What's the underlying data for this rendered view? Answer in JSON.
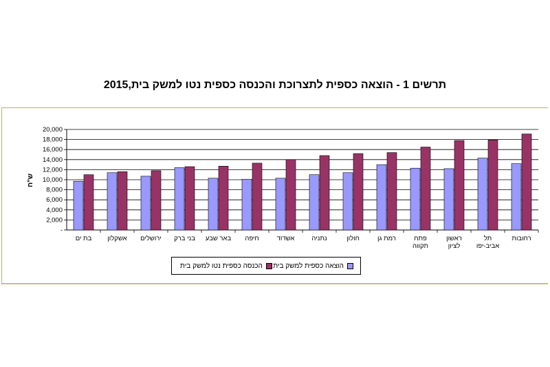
{
  "chart_data": {
    "type": "bar",
    "title": "תרשים 1 - הוצאה כספית לתצרוכת והכנסה כספית נטו למשק בית,2015",
    "ylabel": "ש\"ח",
    "xlabel": "",
    "ylim": [
      0,
      20000
    ],
    "yticks": [
      "-",
      "2,000",
      "4,000",
      "6,000",
      "8,000",
      "10,000",
      "12,000",
      "14,000",
      "16,000",
      "18,000",
      "20,000"
    ],
    "grid": true,
    "legend_position": "bottom",
    "categories": [
      "בת ים",
      "אשקלון",
      "ירושלים",
      "בני ברק",
      "באר שבע",
      "חיפה",
      "אשדוד",
      "נתניה",
      "חולון",
      "רמת גן",
      "פתח תקווה",
      "ראשון לציון",
      "תל אביב-יפו",
      "רחובות"
    ],
    "series": [
      {
        "name": "הוצאה כספית למשק בית",
        "color": "#9999ff",
        "values": [
          9700,
          11400,
          10700,
          12400,
          10300,
          10100,
          10300,
          11000,
          11400,
          13000,
          12300,
          12200,
          14300,
          13200
        ]
      },
      {
        "name": "הכנסה כספית נטו למשק בית",
        "color": "#993366",
        "values": [
          11000,
          11600,
          11800,
          12600,
          12700,
          13300,
          14000,
          14800,
          15200,
          15400,
          16500,
          17800,
          17900,
          19100
        ]
      }
    ]
  }
}
